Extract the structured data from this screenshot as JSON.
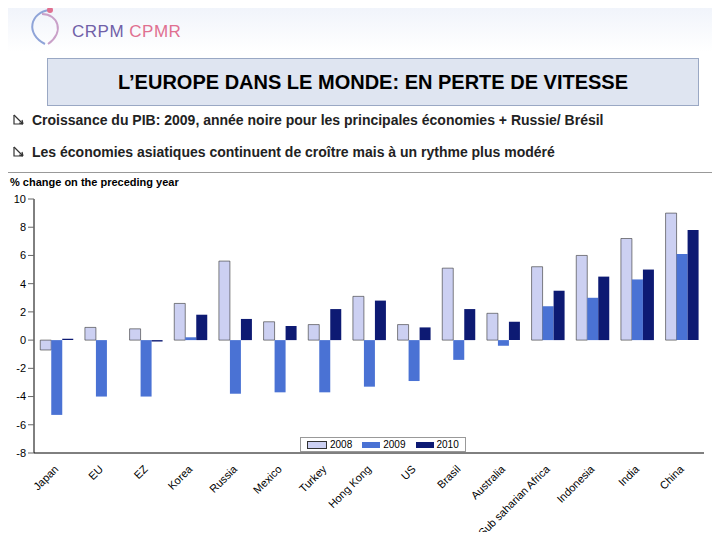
{
  "logo": [
    "CRPM",
    "CPMR"
  ],
  "title": "L’EUROPE DANS LE MONDE: EN PERTE DE VITESSE",
  "bullets": [
    "Croissance du PIB: 2009, année noire pour les principales économies + Russie/ Brésil",
    "Les économies asiatiques continuent de croître mais à un rythme plus modéré"
  ],
  "chart_data": {
    "type": "bar",
    "ylabel": "% change on the preceding year",
    "categories": [
      "Japan",
      "EU",
      "EZ",
      "Korea",
      "Russia",
      "Mexico",
      "Turkey",
      "Hong Kong",
      "US",
      "Brasil",
      "Australia",
      "Sub saharian Africa",
      "Indonesia",
      "India",
      "China"
    ],
    "series": [
      {
        "name": "2008",
        "color": "#ccd0f2",
        "values": [
          -0.7,
          0.9,
          0.8,
          2.6,
          5.6,
          1.3,
          1.1,
          3.1,
          1.1,
          5.1,
          1.9,
          5.2,
          6.0,
          7.2,
          9.0
        ]
      },
      {
        "name": "2009",
        "color": "#4a72d4",
        "values": [
          -5.3,
          -4.0,
          -4.0,
          0.2,
          -3.8,
          -3.7,
          -3.7,
          -3.3,
          -2.9,
          -1.4,
          -0.4,
          2.4,
          3.0,
          4.3,
          6.1
        ]
      },
      {
        "name": "2010",
        "color": "#0d1a73",
        "values": [
          0.1,
          0.0,
          -0.1,
          1.8,
          1.5,
          1.0,
          2.2,
          2.8,
          0.9,
          2.2,
          1.3,
          3.5,
          4.5,
          5.0,
          7.8
        ]
      }
    ],
    "ylim": [
      -8,
      10
    ],
    "yticks": [
      -8,
      -6,
      -4,
      -2,
      0,
      2,
      4,
      6,
      8,
      10
    ],
    "grid": false,
    "legend": "bottom"
  }
}
